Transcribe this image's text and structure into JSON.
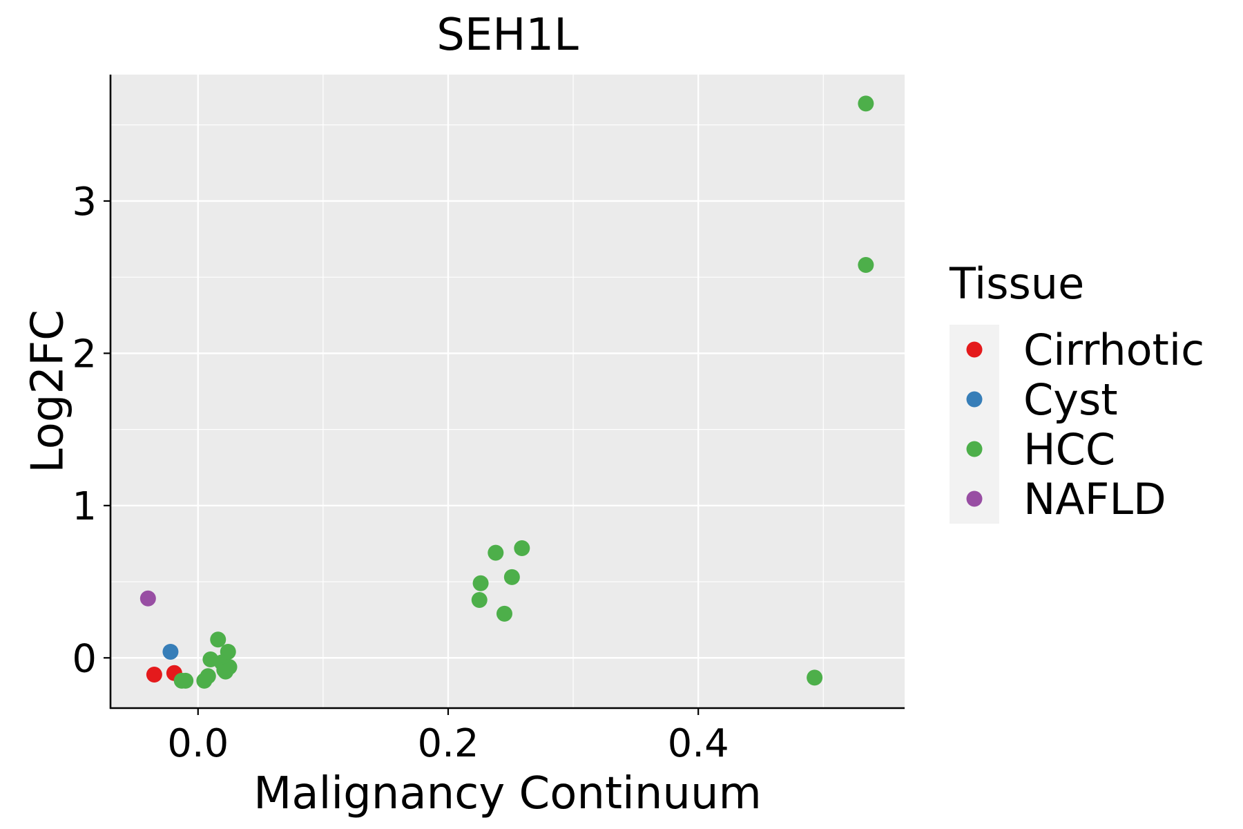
{
  "chart_data": {
    "type": "scatter",
    "title": "SEH1L",
    "xlabel": "Malignancy Continuum",
    "ylabel": "Log2FC",
    "xlim": [
      -0.07,
      0.565
    ],
    "ylim": [
      -0.33,
      3.83
    ],
    "x_ticks": [
      0.0,
      0.2,
      0.4
    ],
    "x_tick_labels": [
      "0.0",
      "0.2",
      "0.4"
    ],
    "x_minor": [
      -0.1,
      0.1,
      0.3,
      0.5
    ],
    "y_ticks": [
      0,
      1,
      2,
      3
    ],
    "y_tick_labels": [
      "0",
      "1",
      "2",
      "3"
    ],
    "y_minor": [
      0.5,
      1.5,
      2.5,
      3.5
    ],
    "grid": true,
    "legend": {
      "title": "Tissue",
      "position": "right",
      "entries": [
        {
          "label": "Cirrhotic",
          "color": "#E41A1C"
        },
        {
          "label": "Cyst",
          "color": "#377EB8"
        },
        {
          "label": "HCC",
          "color": "#4DAF4A"
        },
        {
          "label": "NAFLD",
          "color": "#984EA3"
        }
      ]
    },
    "series": [
      {
        "name": "Cirrhotic",
        "color": "#E41A1C",
        "x": [
          -0.035,
          -0.019
        ],
        "y": [
          -0.11,
          -0.1
        ]
      },
      {
        "name": "Cyst",
        "color": "#377EB8",
        "x": [
          -0.022
        ],
        "y": [
          0.04
        ]
      },
      {
        "name": "HCC",
        "color": "#4DAF4A",
        "x": [
          0.534,
          0.534,
          0.493,
          0.259,
          0.238,
          0.251,
          0.226,
          0.225,
          0.245,
          0.016,
          0.024,
          0.01,
          0.019,
          0.025,
          0.021,
          0.008,
          0.005,
          -0.01,
          -0.013,
          0.022
        ],
        "y": [
          3.64,
          2.58,
          -0.13,
          0.72,
          0.69,
          0.53,
          0.49,
          0.38,
          0.29,
          0.12,
          0.04,
          -0.01,
          -0.03,
          -0.06,
          -0.08,
          -0.12,
          -0.15,
          -0.15,
          -0.15,
          -0.09
        ]
      },
      {
        "name": "NAFLD",
        "color": "#984EA3",
        "x": [
          -0.04
        ],
        "y": [
          0.39
        ]
      }
    ]
  }
}
